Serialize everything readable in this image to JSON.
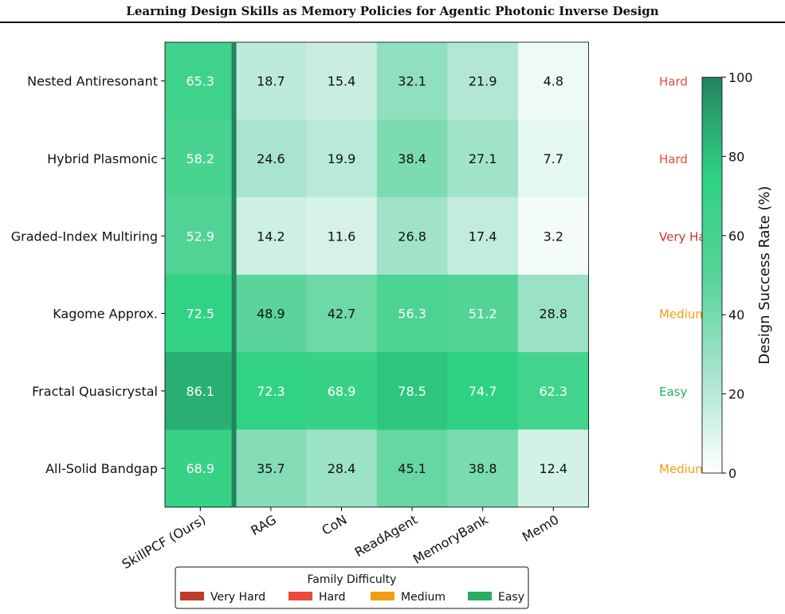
{
  "page": {
    "running_header": "Learning Design Skills as Memory Policies for Agentic Photonic Inverse Design"
  },
  "chart_data": {
    "type": "heatmap",
    "title": "",
    "columns": [
      "SkillPCF (Ours)",
      "RAG",
      "CoN",
      "ReadAgent",
      "MemoryBank",
      "Mem0"
    ],
    "rows": [
      "Nested Antiresonant",
      "Hybrid Plasmonic",
      "Graded-Index Multiring",
      "Kagome Approx.",
      "Fractal Quasicrystal",
      "All-Solid Bandgap"
    ],
    "values": [
      [
        65.3,
        18.7,
        15.4,
        32.1,
        21.9,
        4.8
      ],
      [
        58.2,
        24.6,
        19.9,
        38.4,
        27.1,
        7.7
      ],
      [
        52.9,
        14.2,
        11.6,
        26.8,
        17.4,
        3.2
      ],
      [
        72.5,
        48.9,
        42.7,
        56.3,
        51.2,
        28.8
      ],
      [
        86.1,
        72.3,
        68.9,
        78.5,
        74.7,
        62.3
      ],
      [
        68.9,
        35.7,
        28.4,
        45.1,
        38.8,
        12.4
      ]
    ],
    "value_labels": [
      [
        "65.3",
        "18.7",
        "15.4",
        "32.1",
        "21.9",
        "4.8"
      ],
      [
        "58.2",
        "24.6",
        "19.9",
        "38.4",
        "27.1",
        "7.7"
      ],
      [
        "52.9",
        "14.2",
        "11.6",
        "26.8",
        "17.4",
        "3.2"
      ],
      [
        "72.5",
        "48.9",
        "42.7",
        "56.3",
        "51.2",
        "28.8"
      ],
      [
        "86.1",
        "72.3",
        "68.9",
        "78.5",
        "74.7",
        "62.3"
      ],
      [
        "68.9",
        "35.7",
        "28.4",
        "45.1",
        "38.8",
        "12.4"
      ]
    ],
    "difficulty_labels": [
      "Hard",
      "Hard",
      "Very Hard",
      "Medium",
      "Easy",
      "Medium"
    ],
    "highlighted_column": "SkillPCF (Ours)",
    "colorbar": {
      "label": "Design Success Rate (%)",
      "range": [
        0,
        100
      ],
      "ticks": [
        "0",
        "20",
        "40",
        "60",
        "80",
        "100"
      ],
      "colormap": [
        "#ffffff",
        "#a7e4cd",
        "#56d398",
        "#2ed282",
        "#23845f"
      ]
    },
    "legend": {
      "title": "Family Difficulty",
      "placement": "bottom-center",
      "items": [
        {
          "label": "Very Hard",
          "color": "#c0392b"
        },
        {
          "label": "Hard",
          "color": "#e74c3c"
        },
        {
          "label": "Medium",
          "color": "#f39c12"
        },
        {
          "label": "Easy",
          "color": "#27ae60"
        }
      ]
    }
  }
}
